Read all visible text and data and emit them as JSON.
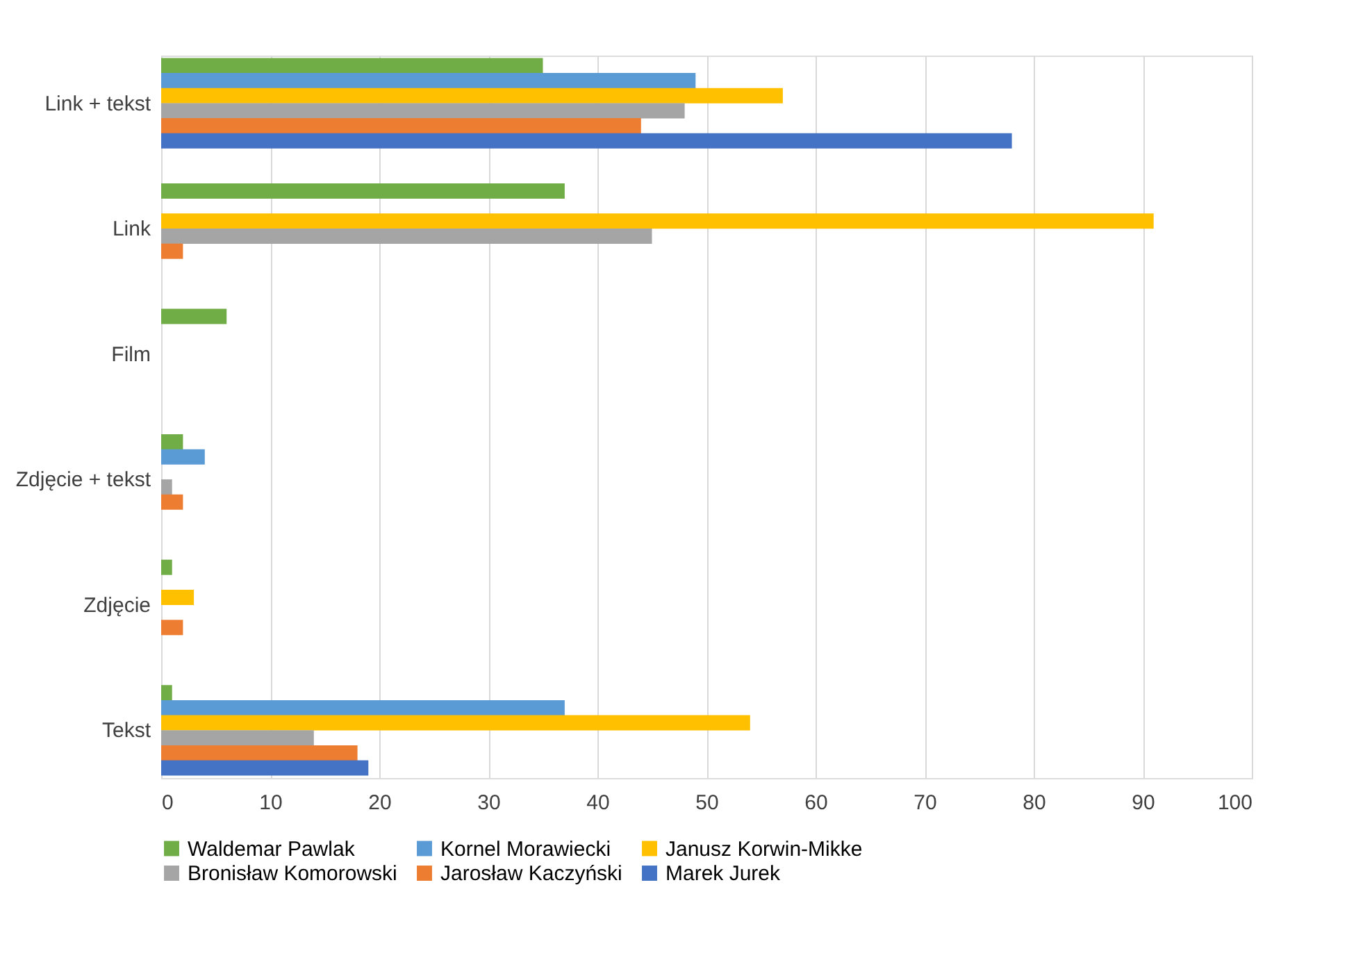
{
  "chart_data": {
    "type": "bar",
    "orientation": "horizontal",
    "categories": [
      "Link + tekst",
      "Link",
      "Film",
      "Zdjęcie + tekst",
      "Zdjęcie",
      "Tekst"
    ],
    "series": [
      {
        "name": "Waldemar Pawlak",
        "color": "#70ad47",
        "values": [
          35,
          37,
          6,
          2,
          1,
          1
        ]
      },
      {
        "name": "Kornel Morawiecki",
        "color": "#5b9bd5",
        "values": [
          49,
          0,
          0,
          4,
          0,
          37
        ]
      },
      {
        "name": "Janusz Korwin-Mikke",
        "color": "#ffc000",
        "values": [
          57,
          91,
          0,
          0,
          3,
          54
        ]
      },
      {
        "name": "Bronisław Komorowski",
        "color": "#a5a5a5",
        "values": [
          48,
          45,
          0,
          1,
          0,
          14
        ]
      },
      {
        "name": "Jarosław Kaczyński",
        "color": "#ed7d31",
        "values": [
          44,
          2,
          0,
          2,
          2,
          18
        ]
      },
      {
        "name": "Marek Jurek",
        "color": "#4472c4",
        "values": [
          78,
          0,
          0,
          0,
          0,
          19
        ]
      }
    ],
    "xlim": [
      0,
      100
    ],
    "xticks": [
      0,
      10,
      20,
      30,
      40,
      50,
      60,
      70,
      80,
      90,
      100
    ],
    "grid": "x",
    "legend": "bottom"
  }
}
